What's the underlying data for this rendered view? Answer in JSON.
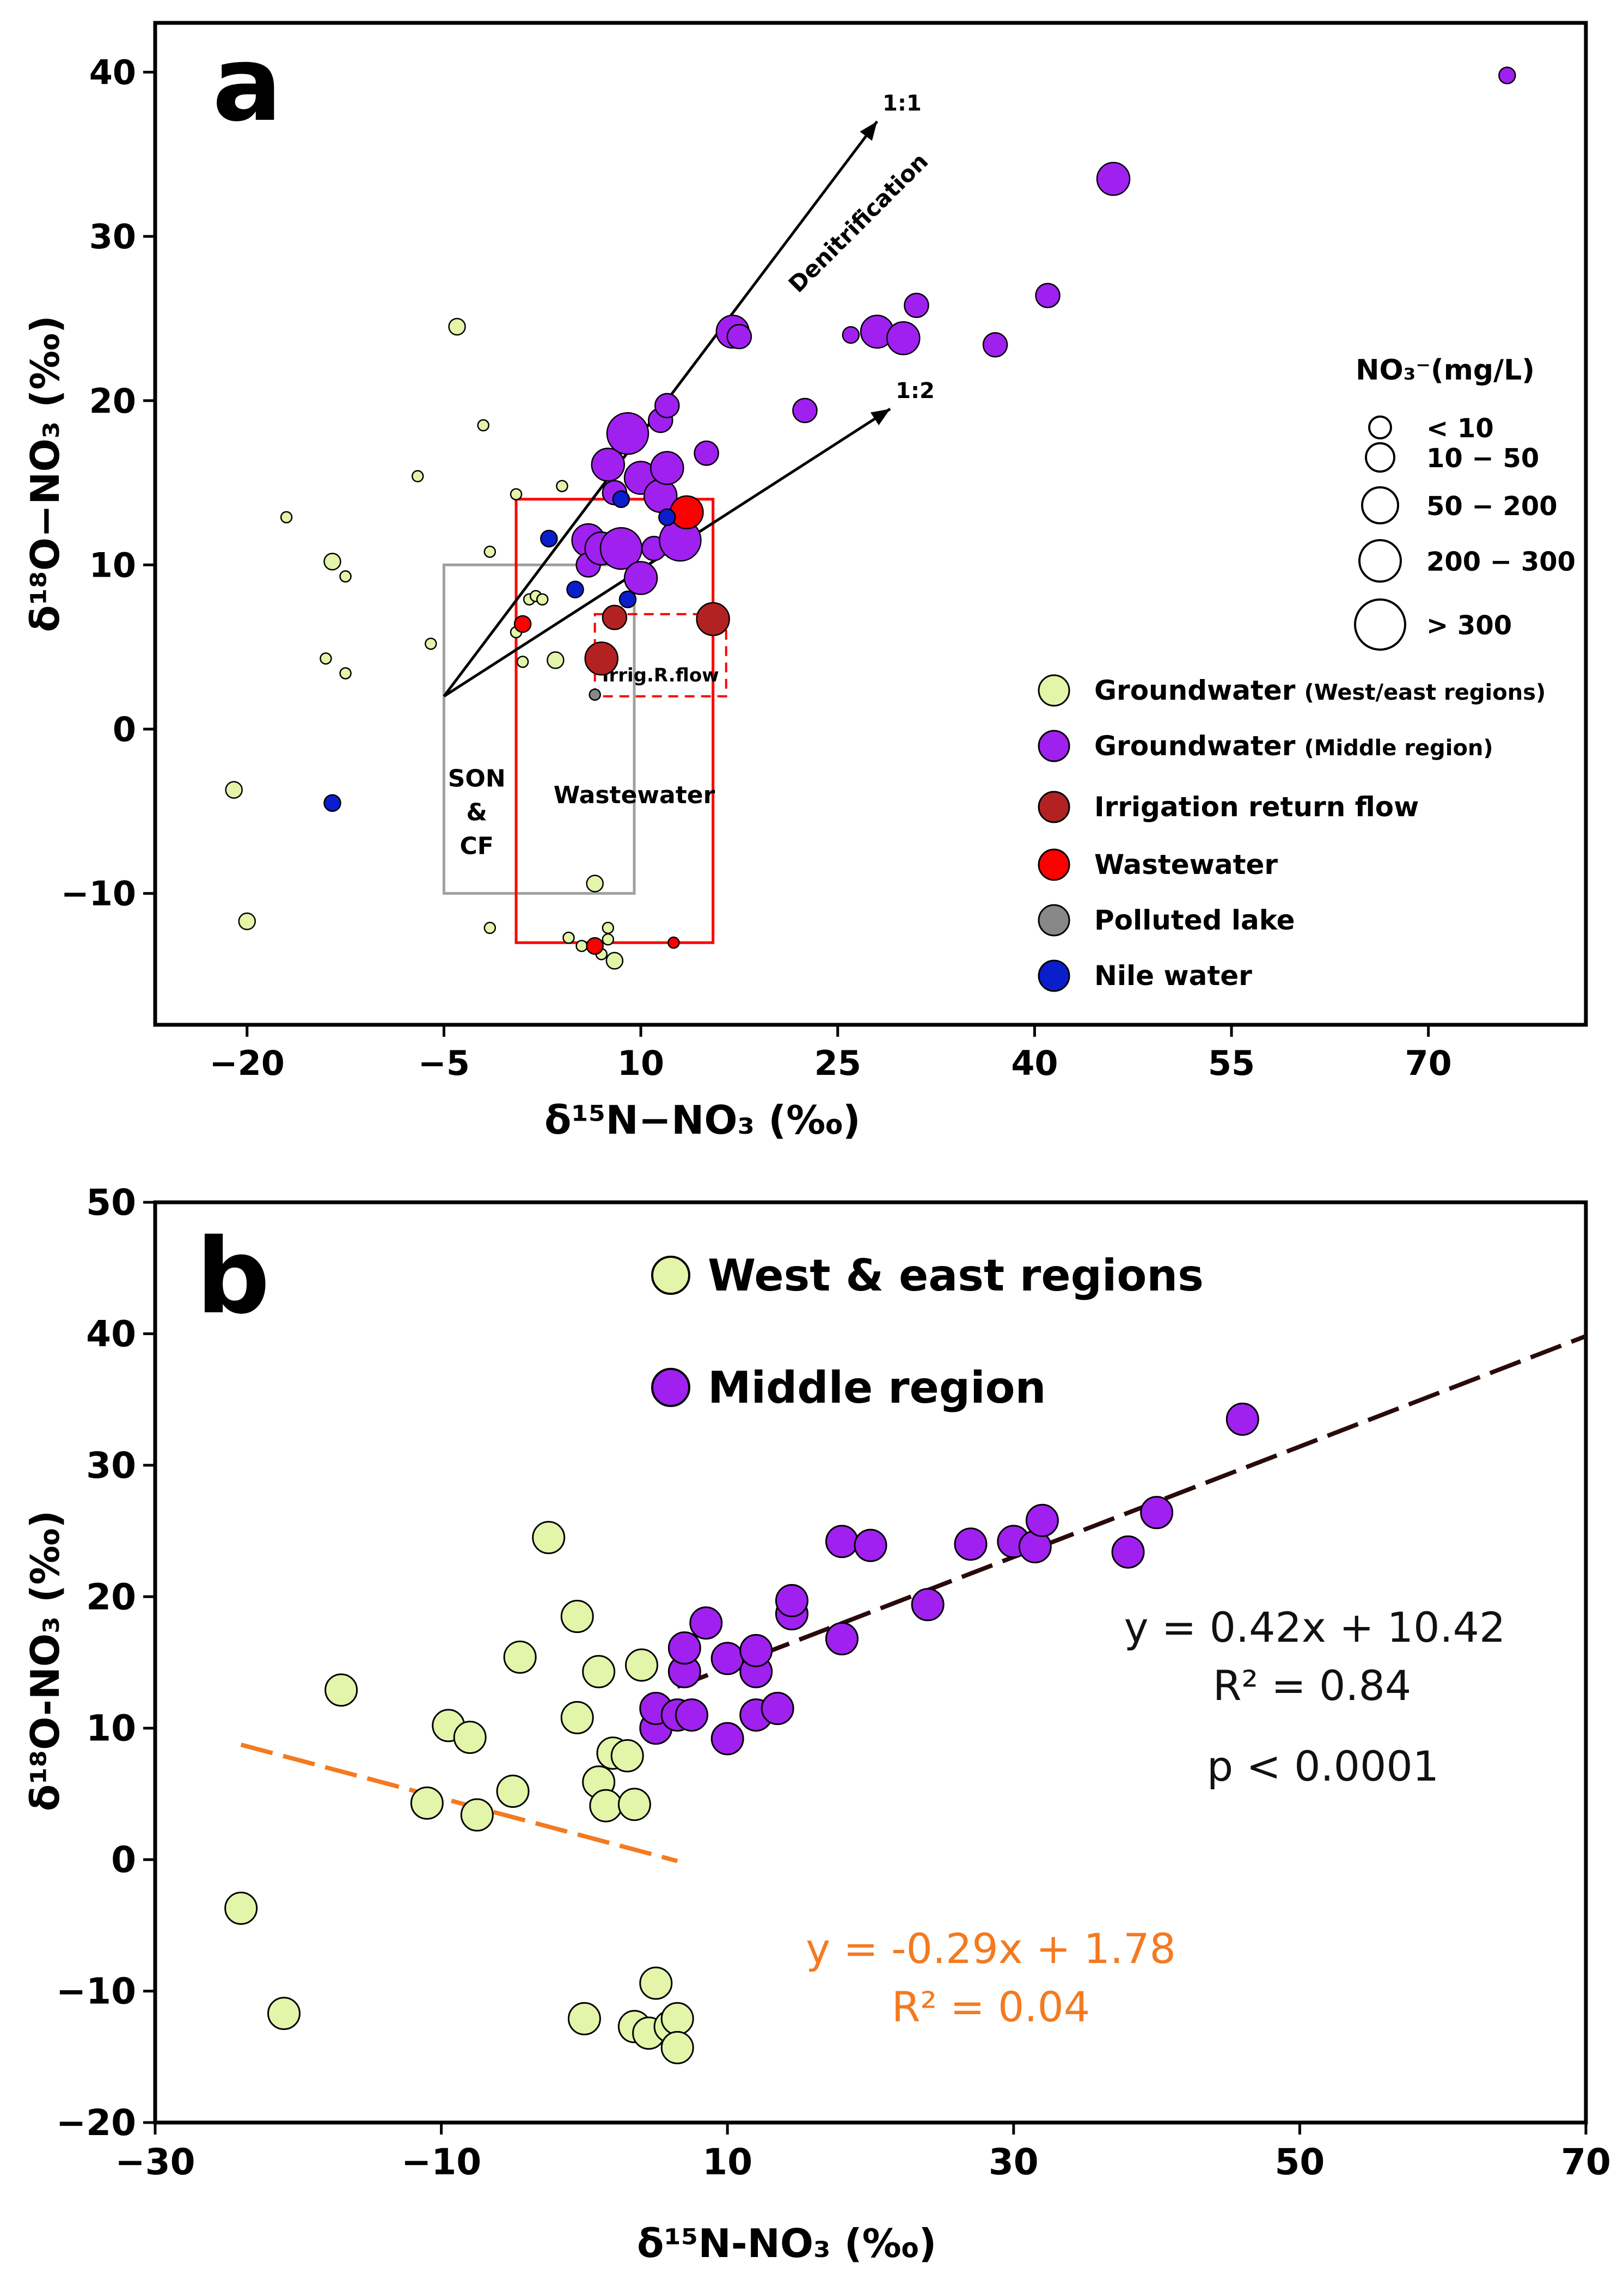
{
  "colors": {
    "groundwater_we": "#e2f5a8",
    "groundwater_mid": "#a020f0",
    "irrigation": "#b22222",
    "wastewater": "#ff0000",
    "polluted_lake": "#888888",
    "nile": "#0a1ecc",
    "orange_fit": "#f47a20",
    "dark_fit": "#2a0a0a",
    "box_red": "#ff0000",
    "box_grey": "#a0a0a0"
  },
  "chart_data": [
    {
      "type": "scatter",
      "panel_label": "a",
      "xlabel": "δ¹⁵N−NO₃ (‰)",
      "ylabel": "δ¹⁸O−NO₃ (‰)",
      "xlim": [
        -27,
        82
      ],
      "ylim": [
        -18,
        43
      ],
      "xticks": [
        -20,
        -5,
        10,
        25,
        40,
        55,
        70
      ],
      "yticks": [
        -10,
        0,
        10,
        20,
        30,
        40
      ],
      "legend_title": "NO₃⁻(mg/L)",
      "size_legend": [
        "< 10",
        "10 − 50",
        "50 − 200",
        "200 − 300",
        "> 300"
      ],
      "class_legend": [
        {
          "key": "groundwater_we",
          "label": "Groundwater",
          "sublabel": "(West/east regions)"
        },
        {
          "key": "groundwater_mid",
          "label": "Groundwater",
          "sublabel": "(Middle region)"
        },
        {
          "key": "irrigation",
          "label": "Irrigation return flow",
          "sublabel": ""
        },
        {
          "key": "wastewater",
          "label": "Wastewater",
          "sublabel": ""
        },
        {
          "key": "polluted_lake",
          "label": "Polluted lake",
          "sublabel": ""
        },
        {
          "key": "nile",
          "label": "Nile water",
          "sublabel": ""
        }
      ],
      "boxes": [
        {
          "name": "SON & CF",
          "label_lines": [
            "SON",
            "&",
            "CF"
          ],
          "x": [
            -5,
            9.5
          ],
          "y": [
            -10,
            10
          ],
          "style": "grey"
        },
        {
          "name": "Wastewater",
          "label_lines": [
            "Wastewater"
          ],
          "x": [
            0.5,
            15.5
          ],
          "y": [
            -13,
            14
          ],
          "style": "red"
        },
        {
          "name": "Irrig.R.flow",
          "label_lines": [
            "Irrig.R.flow"
          ],
          "x": [
            6.5,
            16.5
          ],
          "y": [
            2,
            7
          ],
          "style": "red-dashed"
        }
      ],
      "arrows": [
        {
          "label": "1:1",
          "from": [
            -5,
            2
          ],
          "to": [
            28,
            37
          ]
        },
        {
          "label": "1:2",
          "from": [
            -5,
            2
          ],
          "to": [
            29,
            19.5
          ]
        }
      ],
      "annotation": "Denitrification",
      "series": [
        {
          "key": "groundwater_we",
          "points": [
            [
              -21,
              -3.7,
              1
            ],
            [
              -20,
              -11.7,
              1
            ],
            [
              -17,
              12.9,
              0
            ],
            [
              -14,
              4.3,
              0
            ],
            [
              -13.5,
              10.2,
              1
            ],
            [
              -12.5,
              9.3,
              0
            ],
            [
              -12.5,
              3.4,
              0
            ],
            [
              -7,
              15.4,
              0
            ],
            [
              -6,
              5.2,
              0
            ],
            [
              -4,
              24.5,
              1
            ],
            [
              -2,
              18.5,
              0
            ],
            [
              -1.5,
              10.8,
              0
            ],
            [
              -1.5,
              -12.1,
              0
            ],
            [
              0.5,
              14.3,
              0
            ],
            [
              0.5,
              5.9,
              0
            ],
            [
              1,
              4.1,
              0
            ],
            [
              1.5,
              7.9,
              0
            ],
            [
              2,
              8.1,
              0
            ],
            [
              2.5,
              7.9,
              0
            ],
            [
              3.5,
              4.2,
              1
            ],
            [
              4,
              14.8,
              0
            ],
            [
              4.5,
              -12.7,
              0
            ],
            [
              5.5,
              -13.2,
              0
            ],
            [
              6.5,
              -9.4,
              1
            ],
            [
              7,
              -13.7,
              0
            ],
            [
              7.5,
              -12.1,
              0
            ],
            [
              7.5,
              -12.8,
              0
            ],
            [
              8,
              -14.1,
              1
            ]
          ]
        },
        {
          "key": "groundwater_mid",
          "points": [
            [
              6,
              11.5,
              3
            ],
            [
              6,
              10,
              2
            ],
            [
              7,
              11,
              3
            ],
            [
              7.5,
              16.1,
              3
            ],
            [
              8,
              14.4,
              2
            ],
            [
              8.5,
              11,
              4
            ],
            [
              9,
              18,
              4
            ],
            [
              10,
              15.3,
              3
            ],
            [
              10,
              9.2,
              3
            ],
            [
              11,
              11,
              2
            ],
            [
              11.5,
              14.2,
              3
            ],
            [
              12,
              15.9,
              3
            ],
            [
              11.5,
              18.8,
              2
            ],
            [
              12,
              19.7,
              2
            ],
            [
              13,
              11.5,
              4
            ],
            [
              15,
              16.8,
              2
            ],
            [
              17,
              24.2,
              3
            ],
            [
              17.5,
              23.9,
              2
            ],
            [
              22.5,
              19.4,
              2
            ],
            [
              26,
              24,
              1
            ],
            [
              28,
              24.2,
              3
            ],
            [
              30,
              23.8,
              3
            ],
            [
              31,
              25.8,
              2
            ],
            [
              37,
              23.4,
              2
            ],
            [
              41,
              26.4,
              2
            ],
            [
              46,
              33.5,
              3
            ],
            [
              76,
              39.8,
              1
            ]
          ]
        },
        {
          "key": "irrigation",
          "points": [
            [
              7,
              4.3,
              3
            ],
            [
              8,
              6.8,
              2
            ],
            [
              15.5,
              6.7,
              3
            ]
          ]
        },
        {
          "key": "wastewater",
          "points": [
            [
              13.5,
              13.2,
              3
            ],
            [
              1,
              6.4,
              1
            ],
            [
              6.5,
              -13.2,
              1
            ],
            [
              12.5,
              -13,
              0
            ]
          ]
        },
        {
          "key": "polluted_lake",
          "points": [
            [
              6.5,
              2.1,
              0
            ]
          ]
        },
        {
          "key": "nile",
          "points": [
            [
              -13.5,
              -4.5,
              1
            ],
            [
              3,
              11.6,
              1
            ],
            [
              5,
              8.5,
              1
            ],
            [
              8.5,
              14,
              1
            ],
            [
              9,
              7.9,
              1
            ],
            [
              12,
              12.9,
              1
            ]
          ]
        }
      ]
    },
    {
      "type": "scatter",
      "panel_label": "b",
      "xlabel": "δ¹⁵N-NO₃ (‰)",
      "ylabel": "δ¹⁸O-NO₃ (‰)",
      "xlim": [
        -30,
        70
      ],
      "ylim": [
        -20,
        50
      ],
      "xticks": [
        -30,
        -10,
        10,
        30,
        50,
        70
      ],
      "yticks": [
        -20,
        -10,
        0,
        10,
        20,
        30,
        40,
        50
      ],
      "legend": [
        {
          "key": "groundwater_we",
          "label": "West & east regions"
        },
        {
          "key": "groundwater_mid",
          "label": "Middle region"
        }
      ],
      "series": [
        {
          "name": "West & east regions",
          "key": "groundwater_we",
          "points": [
            [
              -24,
              -3.7
            ],
            [
              -21,
              -11.7
            ],
            [
              -17,
              12.9
            ],
            [
              -11,
              4.3
            ],
            [
              -9.5,
              10.2
            ],
            [
              -8,
              9.3
            ],
            [
              -7.5,
              3.4
            ],
            [
              -5,
              5.2
            ],
            [
              -4.5,
              15.4
            ],
            [
              -2.5,
              24.5
            ],
            [
              -0.5,
              18.5
            ],
            [
              -0.5,
              10.8
            ],
            [
              0,
              -12.1
            ],
            [
              1,
              14.3
            ],
            [
              1,
              5.9
            ],
            [
              1.5,
              4.1
            ],
            [
              2,
              8.1
            ],
            [
              3,
              7.9
            ],
            [
              3.5,
              4.2
            ],
            [
              4,
              14.8
            ],
            [
              3.5,
              -12.7
            ],
            [
              4.5,
              -13.2
            ],
            [
              5,
              -9.4
            ],
            [
              6,
              -12.7
            ],
            [
              6.5,
              -12.1
            ],
            [
              6.5,
              -14.3
            ]
          ]
        },
        {
          "name": "Middle region",
          "key": "groundwater_mid",
          "points": [
            [
              5,
              10
            ],
            [
              5,
              11.5
            ],
            [
              6.5,
              11
            ],
            [
              7,
              14.3
            ],
            [
              7,
              16.1
            ],
            [
              7.5,
              11
            ],
            [
              8.5,
              18
            ],
            [
              10,
              15.3
            ],
            [
              10,
              9.2
            ],
            [
              12,
              14.3
            ],
            [
              12,
              11
            ],
            [
              12,
              15.9
            ],
            [
              13.5,
              11.5
            ],
            [
              14.5,
              18.7
            ],
            [
              14.5,
              19.7
            ],
            [
              18,
              16.8
            ],
            [
              18,
              24.2
            ],
            [
              20,
              23.9
            ],
            [
              24,
              19.4
            ],
            [
              27,
              24
            ],
            [
              30,
              24.2
            ],
            [
              31.5,
              23.8
            ],
            [
              32,
              25.8
            ],
            [
              38,
              23.4
            ],
            [
              40,
              26.4
            ],
            [
              46,
              33.5
            ]
          ]
        }
      ],
      "fits": [
        {
          "key": "orange_fit",
          "x": [
            -24,
            6.5
          ],
          "slope": -0.29,
          "intercept": 1.78,
          "eq": "y = -0.29x + 1.78",
          "r2": "R² = 0.04"
        },
        {
          "key": "dark_fit",
          "x": [
            6.5,
            70
          ],
          "slope": 0.42,
          "intercept": 10.42,
          "eq": "y = 0.42x + 10.42",
          "r2": "R² = 0.84",
          "p": "p < 0.0001"
        }
      ]
    }
  ]
}
